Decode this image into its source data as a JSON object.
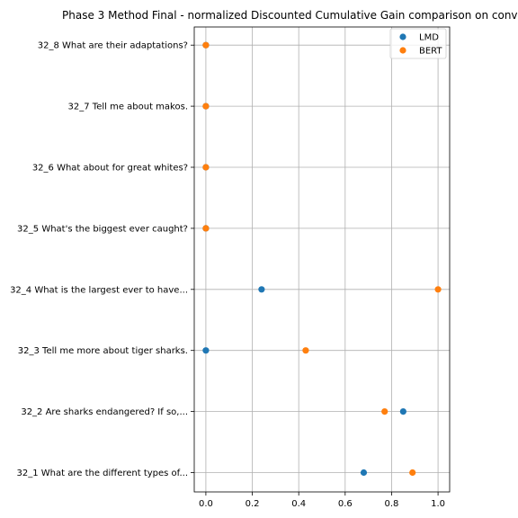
{
  "chart_data": {
    "type": "scatter",
    "title": "Phase 3 Method Final - normalized Discounted Cumulative Gain comparison on conv",
    "xlabel": "",
    "ylabel": "",
    "xlim": [
      -0.05,
      1.05
    ],
    "xticks": [
      0.0,
      0.2,
      0.4,
      0.6,
      0.8,
      1.0
    ],
    "xtick_labels": [
      "0.0",
      "0.2",
      "0.4",
      "0.6",
      "0.8",
      "1.0"
    ],
    "categories": [
      "32_1 What are the different types of...",
      "32_2 Are sharks endangered? If so,...",
      "32_3 Tell me more about tiger sharks.",
      "32_4 What is the largest ever to have...",
      "32_5 What's the biggest ever caught?",
      "32_6 What about for great whites?",
      "32_7 Tell me about makos.",
      "32_8 What are their adaptations?"
    ],
    "series": [
      {
        "name": "LMD",
        "color": "#1f77b4",
        "values": [
          0.68,
          0.85,
          0.0,
          0.24,
          0.0,
          0.0,
          0.0,
          0.0
        ]
      },
      {
        "name": "BERT",
        "color": "#ff7f0e",
        "values": [
          0.89,
          0.77,
          0.43,
          1.0,
          0.0,
          0.0,
          0.0,
          0.0
        ]
      }
    ],
    "grid": true,
    "legend": "upper right"
  }
}
